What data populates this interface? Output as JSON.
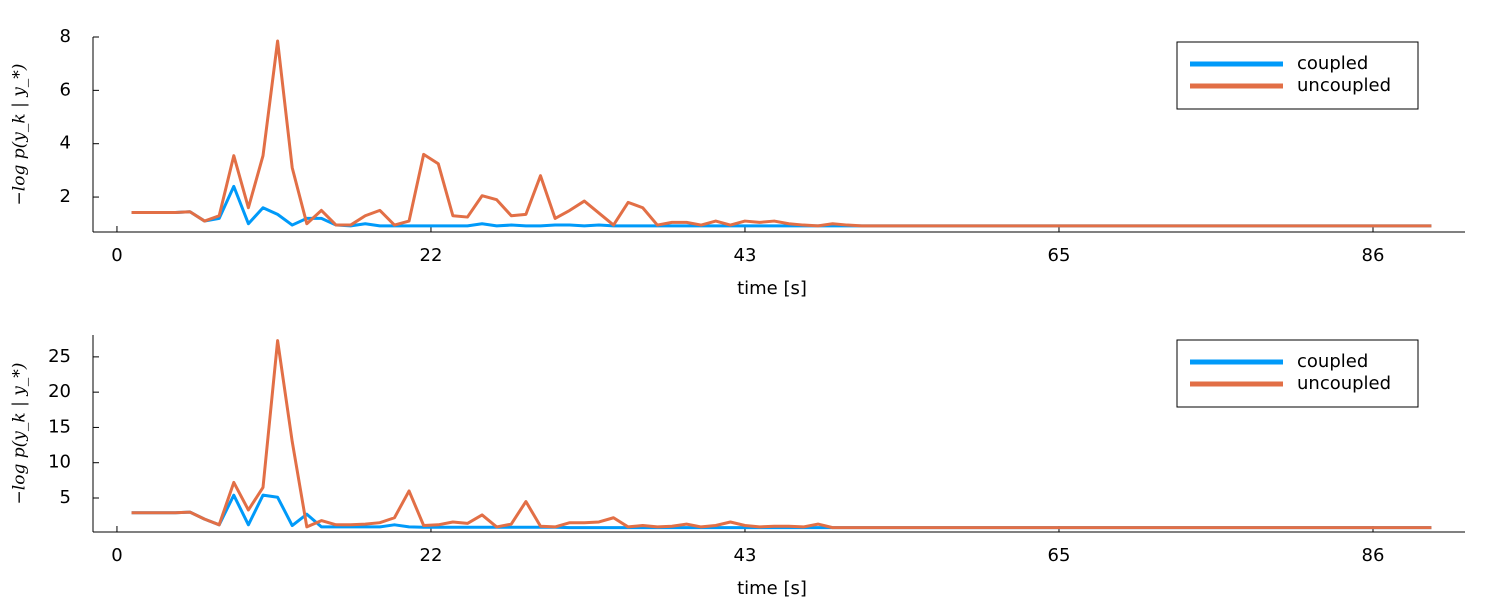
{
  "chart_data": [
    {
      "type": "line",
      "xlabel": "time [s]",
      "ylabel": "−log p(y_k | y_*)",
      "legend": "top-right",
      "grid": false,
      "xlim": [
        -1.64,
        92.3
      ],
      "ylim": [
        0.69,
        8.0
      ],
      "xticks": [
        0,
        {
          "value": 21.5,
          "label": "22"
        },
        43,
        {
          "value": 64.5,
          "label": "65"
        },
        86
      ],
      "yticks": [
        2,
        4,
        6,
        8
      ],
      "x": [
        1,
        2,
        3,
        4,
        5,
        6,
        7,
        8,
        9,
        10,
        11,
        12,
        13,
        14,
        15,
        16,
        17,
        18,
        19,
        20,
        21,
        22,
        23,
        24,
        25,
        26,
        27,
        28,
        29,
        30,
        31,
        32,
        33,
        34,
        35,
        36,
        37,
        38,
        39,
        40,
        41,
        42,
        43,
        44,
        45,
        46,
        47,
        48,
        49,
        50,
        51,
        52,
        53,
        54,
        55,
        56,
        57,
        58,
        59,
        60,
        61,
        62,
        63,
        64,
        65,
        66,
        67,
        68,
        69,
        70,
        71,
        72,
        73,
        74,
        75,
        76,
        77,
        78,
        79,
        80,
        81,
        82,
        83,
        84,
        85,
        86,
        87,
        88,
        89,
        90
      ],
      "series": [
        {
          "name": "coupled",
          "color": "#009af9",
          "values": [
            1.42,
            1.42,
            1.42,
            1.42,
            1.45,
            1.1,
            1.2,
            2.4,
            1.0,
            1.6,
            1.35,
            0.95,
            1.2,
            1.2,
            0.95,
            0.92,
            1.0,
            0.92,
            0.92,
            0.92,
            0.92,
            0.92,
            0.92,
            0.92,
            1.0,
            0.92,
            0.95,
            0.92,
            0.92,
            0.95,
            0.95,
            0.92,
            0.95,
            0.92,
            0.92,
            0.92,
            0.92,
            0.92,
            0.92,
            0.92,
            0.92,
            0.92,
            0.92,
            0.92,
            0.92,
            0.92,
            0.92,
            0.92,
            0.92,
            0.92,
            0.92,
            0.92,
            0.92,
            0.92,
            0.92,
            0.92,
            0.92,
            0.92,
            0.92,
            0.92,
            0.92,
            0.92,
            0.92,
            0.92,
            0.92,
            0.92,
            0.92,
            0.92,
            0.92,
            0.92,
            0.92,
            0.92,
            0.92,
            0.92,
            0.92,
            0.92,
            0.92,
            0.92,
            0.92,
            0.92,
            0.92,
            0.92,
            0.92,
            0.92,
            0.92,
            0.92,
            0.92,
            0.92,
            0.92,
            0.92
          ]
        },
        {
          "name": "uncoupled",
          "color": "#e26f46",
          "values": [
            1.42,
            1.42,
            1.42,
            1.42,
            1.45,
            1.1,
            1.3,
            3.55,
            1.6,
            3.55,
            7.85,
            3.1,
            1.0,
            1.5,
            0.95,
            0.95,
            1.3,
            1.5,
            0.95,
            1.1,
            3.6,
            3.25,
            1.3,
            1.25,
            2.05,
            1.9,
            1.3,
            1.35,
            2.8,
            1.2,
            1.5,
            1.85,
            1.4,
            0.95,
            1.8,
            1.6,
            0.95,
            1.05,
            1.05,
            0.95,
            1.1,
            0.95,
            1.1,
            1.05,
            1.1,
            1.0,
            0.95,
            0.92,
            1.0,
            0.95,
            0.92,
            0.92,
            0.92,
            0.92,
            0.92,
            0.92,
            0.92,
            0.92,
            0.92,
            0.92,
            0.92,
            0.92,
            0.92,
            0.92,
            0.92,
            0.92,
            0.92,
            0.92,
            0.92,
            0.92,
            0.92,
            0.92,
            0.92,
            0.92,
            0.92,
            0.92,
            0.92,
            0.92,
            0.92,
            0.92,
            0.92,
            0.92,
            0.92,
            0.92,
            0.92,
            0.92,
            0.92,
            0.92,
            0.92,
            0.92
          ]
        }
      ]
    },
    {
      "type": "line",
      "xlabel": "time [s]",
      "ylabel": "−log p(y_k | y_*)",
      "legend": "top-right",
      "grid": false,
      "xlim": [
        -1.64,
        92.3
      ],
      "ylim": [
        0.18,
        28.1
      ],
      "xticks": [
        0,
        {
          "value": 21.5,
          "label": "22"
        },
        43,
        {
          "value": 64.5,
          "label": "65"
        },
        86
      ],
      "yticks": [
        5,
        10,
        15,
        20,
        25
      ],
      "x": [
        1,
        2,
        3,
        4,
        5,
        6,
        7,
        8,
        9,
        10,
        11,
        12,
        13,
        14,
        15,
        16,
        17,
        18,
        19,
        20,
        21,
        22,
        23,
        24,
        25,
        26,
        27,
        28,
        29,
        30,
        31,
        32,
        33,
        34,
        35,
        36,
        37,
        38,
        39,
        40,
        41,
        42,
        43,
        44,
        45,
        46,
        47,
        48,
        49,
        50,
        51,
        52,
        53,
        54,
        55,
        56,
        57,
        58,
        59,
        60,
        61,
        62,
        63,
        64,
        65,
        66,
        67,
        68,
        69,
        70,
        71,
        72,
        73,
        74,
        75,
        76,
        77,
        78,
        79,
        80,
        81,
        82,
        83,
        84,
        85,
        86,
        87,
        88,
        89,
        90
      ],
      "series": [
        {
          "name": "coupled",
          "color": "#009af9",
          "values": [
            2.9,
            2.9,
            2.9,
            2.9,
            3.0,
            2.0,
            1.2,
            5.4,
            1.2,
            5.4,
            5.1,
            1.1,
            2.7,
            0.9,
            0.9,
            0.9,
            0.9,
            0.9,
            1.2,
            0.9,
            0.85,
            0.85,
            0.85,
            0.85,
            0.85,
            0.85,
            0.85,
            0.85,
            0.85,
            0.85,
            0.8,
            0.8,
            0.8,
            0.8,
            0.8,
            0.8,
            0.8,
            0.8,
            0.8,
            0.8,
            0.8,
            0.8,
            0.8,
            0.8,
            0.8,
            0.8,
            0.8,
            0.8,
            0.8,
            0.8,
            0.8,
            0.8,
            0.8,
            0.8,
            0.8,
            0.8,
            0.8,
            0.8,
            0.8,
            0.8,
            0.8,
            0.8,
            0.8,
            0.8,
            0.8,
            0.8,
            0.8,
            0.8,
            0.8,
            0.8,
            0.8,
            0.8,
            0.8,
            0.8,
            0.8,
            0.8,
            0.8,
            0.8,
            0.8,
            0.8,
            0.8,
            0.8,
            0.8,
            0.8,
            0.8,
            0.8,
            0.8,
            0.8,
            0.8,
            0.8
          ]
        },
        {
          "name": "uncoupled",
          "color": "#e26f46",
          "values": [
            2.9,
            2.9,
            2.9,
            2.9,
            3.0,
            2.0,
            1.2,
            7.2,
            3.3,
            6.5,
            27.3,
            13.0,
            0.9,
            1.8,
            1.2,
            1.2,
            1.3,
            1.5,
            2.2,
            6.0,
            1.1,
            1.2,
            1.6,
            1.4,
            2.6,
            0.9,
            1.3,
            4.5,
            1.0,
            0.9,
            1.5,
            1.5,
            1.6,
            2.2,
            0.9,
            1.1,
            0.9,
            1.0,
            1.3,
            0.9,
            1.1,
            1.6,
            1.1,
            0.9,
            1.0,
            1.0,
            0.9,
            1.3,
            0.8,
            0.8,
            0.8,
            0.8,
            0.8,
            0.8,
            0.8,
            0.8,
            0.8,
            0.8,
            0.8,
            0.8,
            0.8,
            0.8,
            0.8,
            0.8,
            0.8,
            0.8,
            0.8,
            0.8,
            0.8,
            0.8,
            0.8,
            0.8,
            0.8,
            0.8,
            0.8,
            0.8,
            0.8,
            0.8,
            0.8,
            0.8,
            0.8,
            0.8,
            0.8,
            0.8,
            0.8,
            0.8,
            0.8,
            0.8,
            0.8,
            0.8
          ]
        }
      ]
    }
  ]
}
